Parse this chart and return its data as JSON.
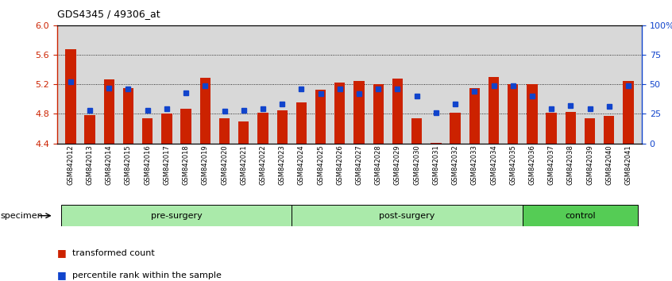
{
  "title": "GDS4345 / 49306_at",
  "samples": [
    "GSM842012",
    "GSM842013",
    "GSM842014",
    "GSM842015",
    "GSM842016",
    "GSM842017",
    "GSM842018",
    "GSM842019",
    "GSM842020",
    "GSM842021",
    "GSM842022",
    "GSM842023",
    "GSM842024",
    "GSM842025",
    "GSM842026",
    "GSM842027",
    "GSM842028",
    "GSM842029",
    "GSM842030",
    "GSM842031",
    "GSM842032",
    "GSM842033",
    "GSM842034",
    "GSM842035",
    "GSM842036",
    "GSM842037",
    "GSM842038",
    "GSM842039",
    "GSM842040",
    "GSM842041"
  ],
  "transformed_count": [
    5.68,
    4.78,
    5.27,
    5.15,
    4.74,
    4.8,
    4.87,
    5.29,
    4.74,
    4.7,
    4.81,
    4.85,
    4.95,
    5.13,
    5.22,
    5.25,
    5.2,
    5.28,
    4.74,
    4.41,
    4.82,
    5.15,
    5.3,
    5.2,
    5.2,
    4.82,
    4.83,
    4.74,
    4.77,
    5.25
  ],
  "percentile_rank_pct": [
    52,
    28,
    47,
    46,
    28,
    29,
    43,
    49,
    27,
    28,
    29,
    33,
    46,
    42,
    46,
    42,
    46,
    46,
    40,
    26,
    33,
    44,
    49,
    49,
    40,
    29,
    32,
    29,
    31,
    49
  ],
  "ylim_left": [
    4.4,
    6.0
  ],
  "ylim_right": [
    0,
    100
  ],
  "right_ticks": [
    0,
    25,
    50,
    75,
    100
  ],
  "right_tick_labels": [
    "0",
    "25",
    "50",
    "75",
    "100%"
  ],
  "left_ticks": [
    4.4,
    4.8,
    5.2,
    5.6,
    6.0
  ],
  "bar_color": "#cc2200",
  "dot_color": "#1144cc",
  "base": 4.4,
  "plot_bg_color": "#d8d8d8",
  "grid_color": "#000000",
  "left_tick_color": "#cc2200",
  "right_tick_color": "#1144cc",
  "legend_bar_label": "transformed count",
  "legend_dot_label": "percentile rank within the sample",
  "specimen_label": "specimen",
  "group_configs": [
    {
      "label": "pre-surgery",
      "start": 0,
      "end": 11,
      "color": "#aaeaaa"
    },
    {
      "label": "post-surgery",
      "start": 12,
      "end": 23,
      "color": "#aaeaaa"
    },
    {
      "label": "control",
      "start": 24,
      "end": 29,
      "color": "#55cc55"
    }
  ]
}
